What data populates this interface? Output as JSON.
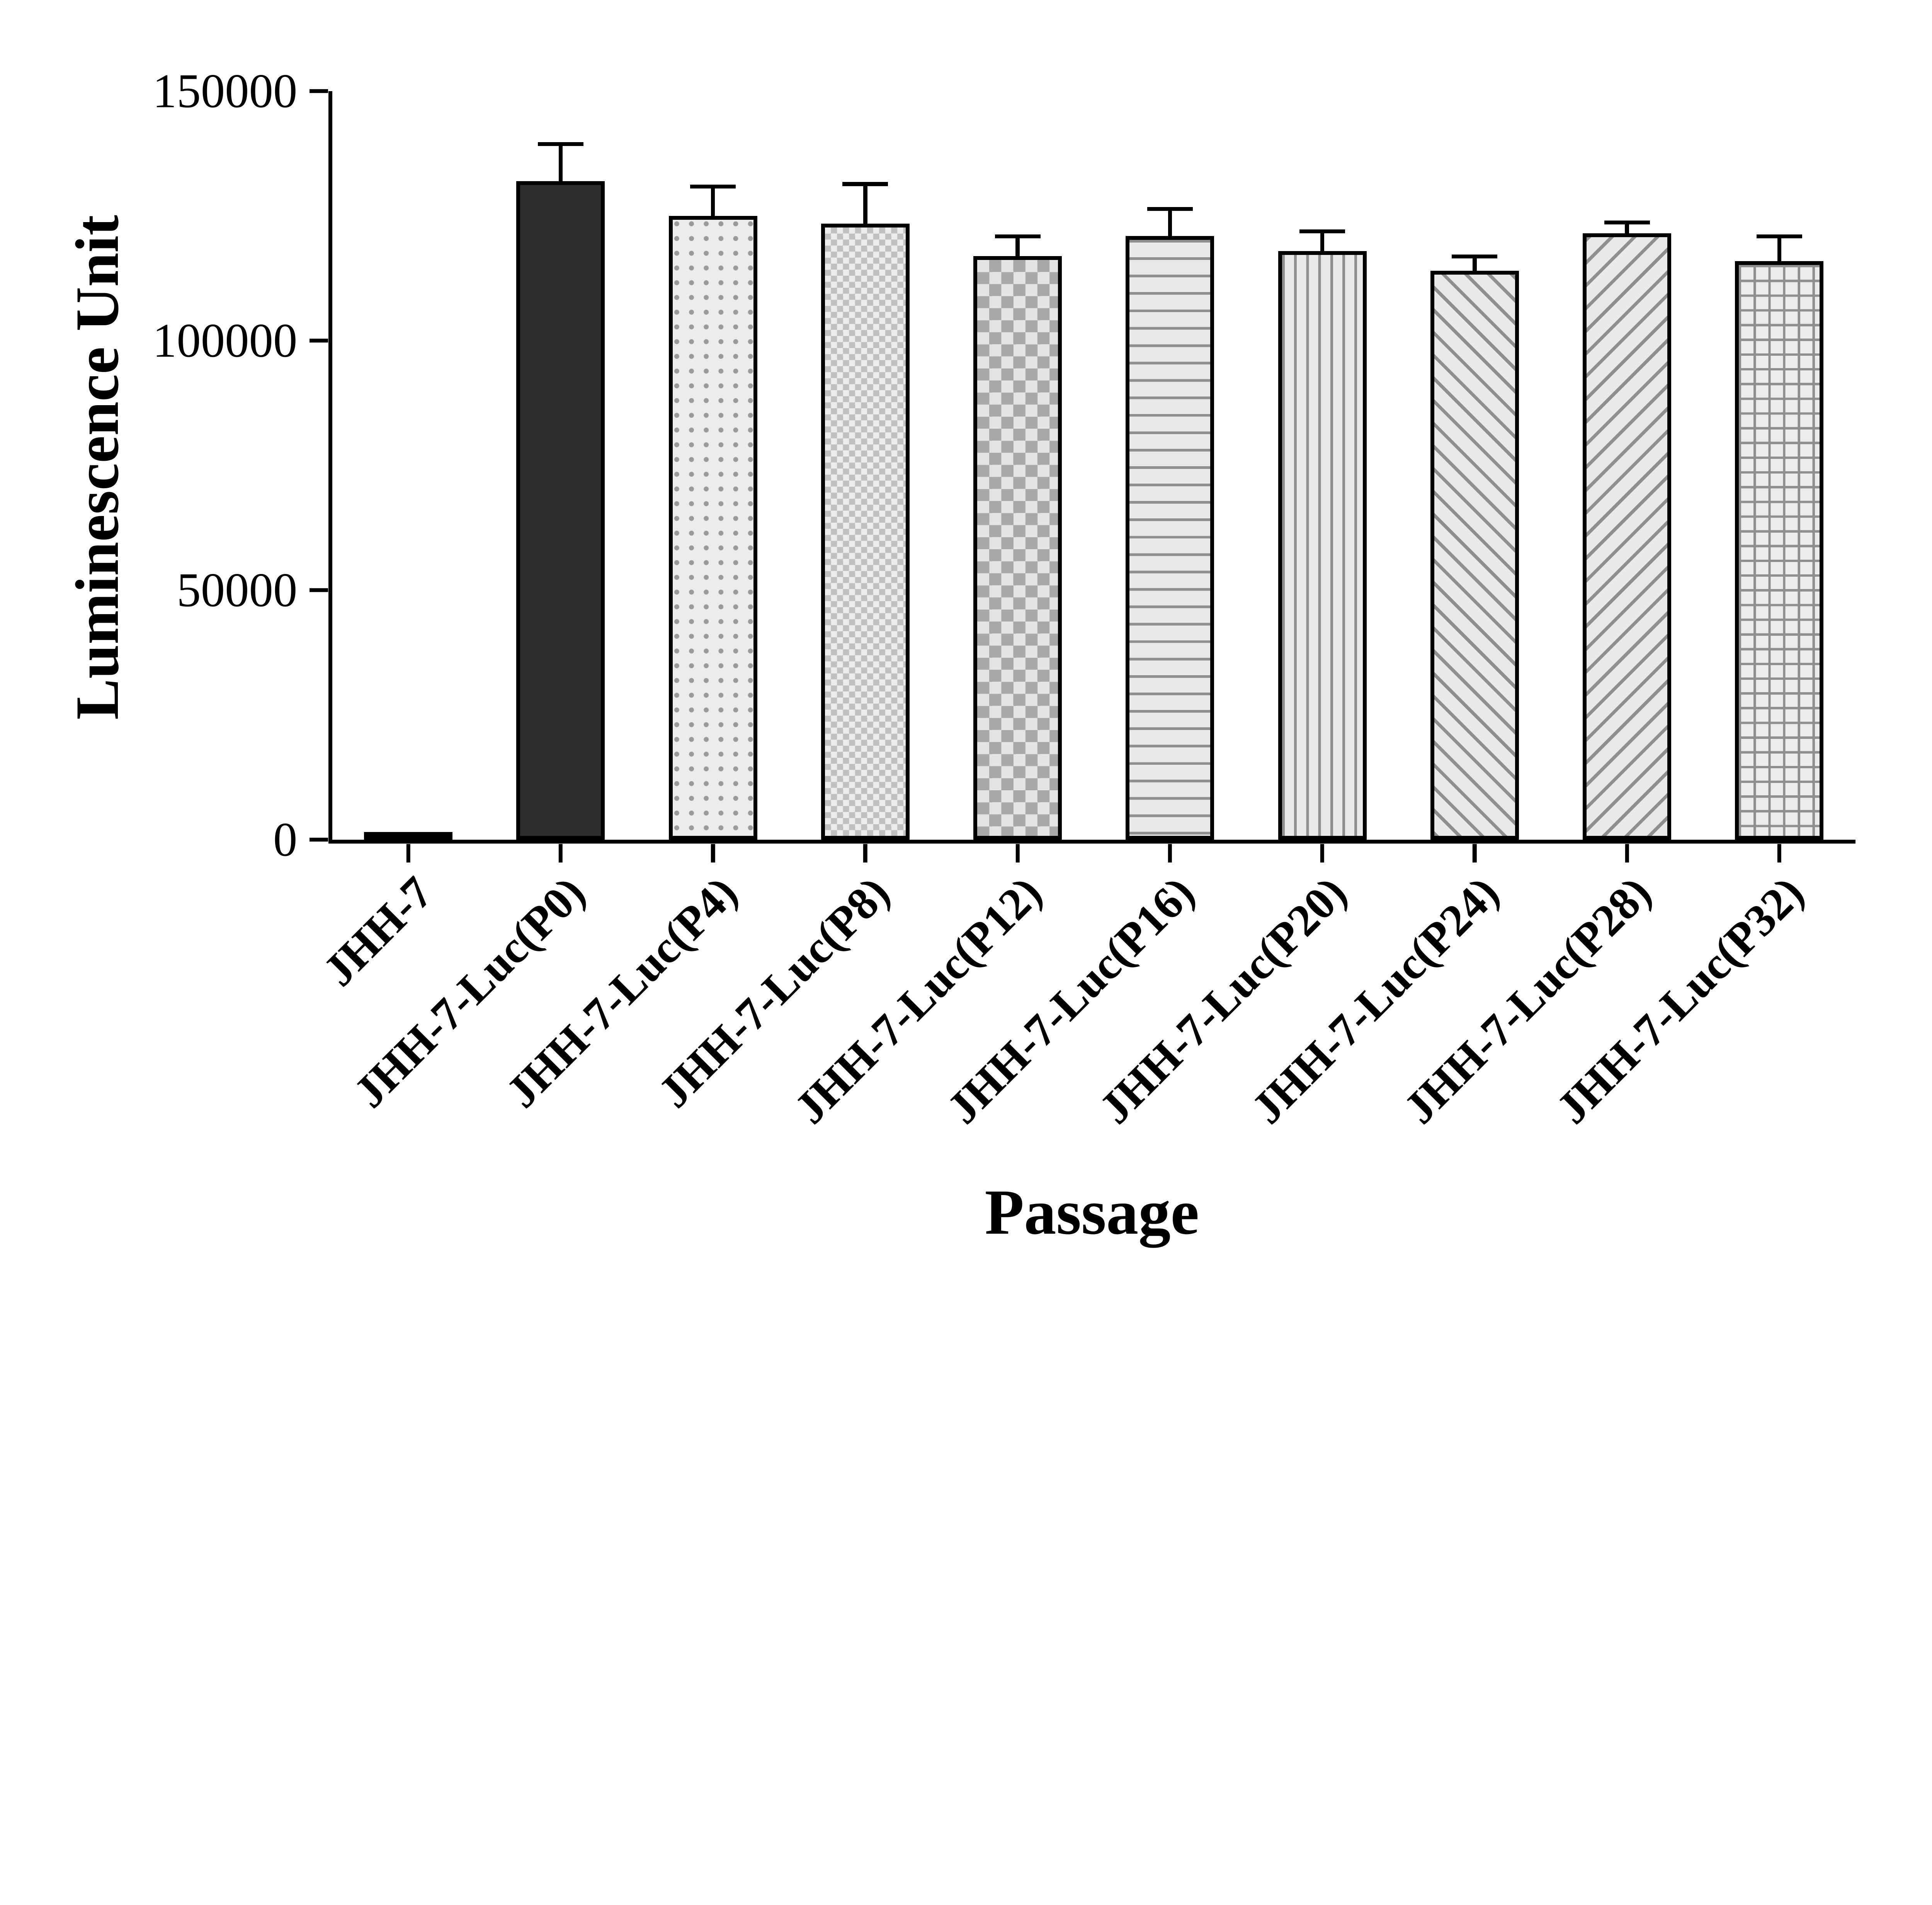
{
  "figure": {
    "y_axis_title": "Luminescence Unit",
    "x_axis_title": "Passage"
  },
  "chart_data": {
    "type": "bar",
    "title": "",
    "xlabel": "Passage",
    "ylabel": "Luminescence Unit",
    "ylim": [
      0,
      150000
    ],
    "yticks": [
      0,
      50000,
      100000,
      150000
    ],
    "ytick_labels": [
      "0",
      "50000",
      "100000",
      "150000"
    ],
    "grid": false,
    "legend": null,
    "categories": [
      "JHH-7",
      "JHH-7-Luc(P0)",
      "JHH-7-Luc(P4)",
      "JHH-7-Luc(P8)",
      "JHH-7-Luc(P12)",
      "JHH-7-Luc(P16)",
      "JHH-7-Luc(P20)",
      "JHH-7-Luc(P24)",
      "JHH-7-Luc(P28)",
      "JHH-7-Luc(P32)"
    ],
    "values": [
      400,
      132000,
      125000,
      123500,
      117000,
      121000,
      118000,
      114000,
      121500,
      116000
    ],
    "errors": [
      300,
      7000,
      5500,
      7500,
      3500,
      5000,
      3500,
      2500,
      1800,
      4500
    ],
    "bar_styles": [
      "solid-light",
      "solid-dark",
      "dots",
      "check-fine",
      "check",
      "hlines",
      "vlines",
      "diag-right",
      "diag-left",
      "grid"
    ],
    "colors": {
      "axis": "#000000",
      "bar_dark": "#2d2d2d",
      "bar_light": "#ececec",
      "pattern_stroke": "#8f8f8f"
    }
  }
}
